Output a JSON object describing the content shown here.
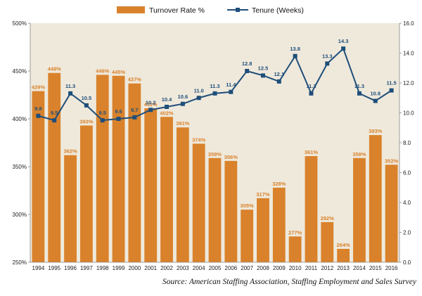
{
  "chart_data": {
    "type": "bar",
    "categories": [
      "1994",
      "1995",
      "1996",
      "1997",
      "1998",
      "1999",
      "2000",
      "2001",
      "2002",
      "2003",
      "2004",
      "2005",
      "2006",
      "2007",
      "2008",
      "2009",
      "2010",
      "2011",
      "2012",
      "2013",
      "2014",
      "2015",
      "2016"
    ],
    "series": [
      {
        "name": "Turnover Rate %",
        "type": "bar",
        "axis": "left",
        "color": "#d9822b",
        "values": [
          429,
          448,
          362,
          393,
          446,
          445,
          437,
          411,
          402,
          391,
          374,
          359,
          356,
          305,
          317,
          328,
          277,
          361,
          292,
          264,
          359,
          383,
          352
        ],
        "labels": [
          "429%",
          "448%",
          "362%",
          "393%",
          "446%",
          "445%",
          "437%",
          "411%",
          "402%",
          "391%",
          "374%",
          "359%",
          "356%",
          "305%",
          "317%",
          "328%",
          "277%",
          "361%",
          "292%",
          "264%",
          "359%",
          "383%",
          "352%"
        ]
      },
      {
        "name": "Tenure (Weeks)",
        "type": "line",
        "axis": "right",
        "color": "#1f4e79",
        "values": [
          9.8,
          9.5,
          11.3,
          10.5,
          9.5,
          9.6,
          9.7,
          10.2,
          10.4,
          10.6,
          11.0,
          11.3,
          11.4,
          12.8,
          12.5,
          12.1,
          13.8,
          11.3,
          13.3,
          14.3,
          11.3,
          10.8,
          11.5
        ],
        "labels": [
          "9.8",
          "9.5",
          "11.3",
          "10.5",
          "9.5",
          "9.6",
          "9.7",
          "10.2",
          "10.4",
          "10.6",
          "11.0",
          "11.3",
          "11.4",
          "12.8",
          "12.5",
          "12.1",
          "13.8",
          "11.3",
          "13.3",
          "14.3",
          "11.3",
          "10.8",
          "11.5"
        ]
      }
    ],
    "y_left": {
      "range": [
        250,
        500
      ],
      "ticks": [
        250,
        300,
        350,
        400,
        450,
        500
      ],
      "tick_labels": [
        "250%",
        "300%",
        "350%",
        "400%",
        "450%",
        "500%"
      ]
    },
    "y_right": {
      "range": [
        0,
        16
      ],
      "ticks": [
        0,
        2,
        4,
        6,
        8,
        10,
        12,
        14,
        16
      ],
      "tick_labels": [
        "0.0",
        "2.0",
        "4.0",
        "6.0",
        "8.0",
        "10.0",
        "12.0",
        "14.0",
        "16.0"
      ]
    },
    "plot_background": "#efe9dc",
    "label_color_bar": "#d9822b",
    "label_color_line": "#1f4e79",
    "grid": false,
    "legend_position": "top-center",
    "legend": [
      "Turnover Rate %",
      "Tenure (Weeks)"
    ],
    "source": "Source: American Staffing Association, Staffing Employment and Sales Survey"
  }
}
